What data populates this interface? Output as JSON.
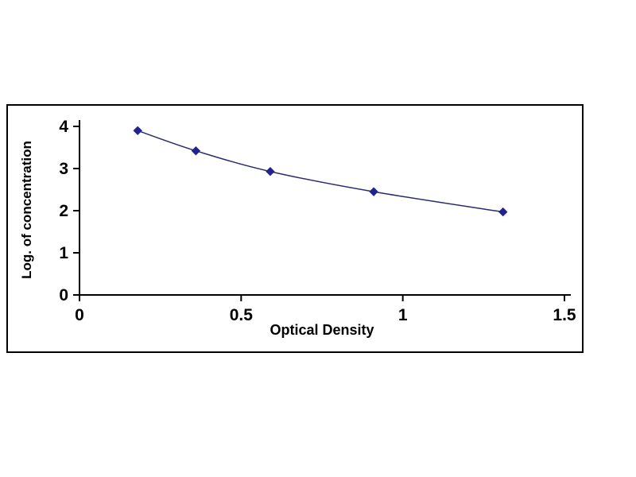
{
  "chart_data": {
    "type": "line",
    "title": "",
    "xlabel": "Optical Density",
    "ylabel": "Log. of concentration",
    "x": [
      0.18,
      0.36,
      0.59,
      0.91,
      1.31
    ],
    "y": [
      3.9,
      3.42,
      2.93,
      2.45,
      1.97
    ],
    "xlim": [
      0,
      1.5
    ],
    "ylim": [
      0,
      4
    ],
    "xticks": [
      0,
      0.5,
      1,
      1.5
    ],
    "xtick_labels": [
      "0",
      "0.5",
      "1",
      "1.5"
    ],
    "yticks": [
      0,
      1,
      2,
      3,
      4
    ],
    "ytick_labels": [
      "0",
      "1",
      "2",
      "3",
      "4"
    ],
    "grid": false,
    "legend_position": "none",
    "marker": "diamond",
    "colors": {
      "line": "#2b2b6e",
      "marker": "#23238f",
      "axis": "#000000",
      "frame_border": "#000000",
      "background": "#ffffff"
    }
  }
}
